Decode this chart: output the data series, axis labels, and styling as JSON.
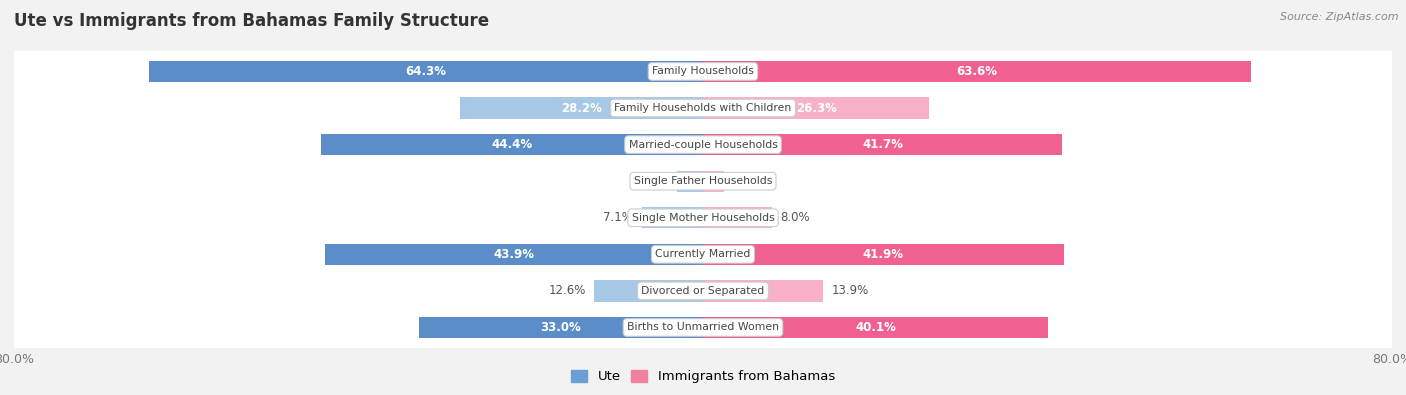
{
  "title": "Ute vs Immigrants from Bahamas Family Structure",
  "source": "Source: ZipAtlas.com",
  "categories": [
    "Family Households",
    "Family Households with Children",
    "Married-couple Households",
    "Single Father Households",
    "Single Mother Households",
    "Currently Married",
    "Divorced or Separated",
    "Births to Unmarried Women"
  ],
  "ute_values": [
    64.3,
    28.2,
    44.4,
    3.0,
    7.1,
    43.9,
    12.6,
    33.0
  ],
  "immigrants_values": [
    63.6,
    26.3,
    41.7,
    2.4,
    8.0,
    41.9,
    13.9,
    40.1
  ],
  "x_min": -80.0,
  "x_max": 80.0,
  "ute_color_strong": "#5b8ec8",
  "ute_color_light": "#a8c8e8",
  "immigrants_color_strong": "#f06090",
  "immigrants_color_light": "#f8b0c8",
  "bar_height": 0.58,
  "row_bg_color": "#f0f0f0",
  "row_white_color": "#ffffff",
  "background_color": "#f2f2f2",
  "title_color": "#333333",
  "source_color": "#888888",
  "label_inside_color": "#ffffff",
  "label_outside_color": "#555555",
  "inside_threshold": 20.0,
  "legend_ute_color": "#6b9fd4",
  "legend_imm_color": "#f07fa0"
}
